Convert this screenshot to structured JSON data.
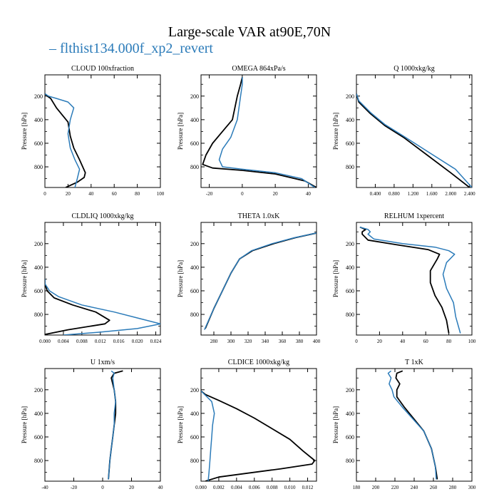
{
  "title": "Large-scale VAR at90E,70N",
  "legend": {
    "prefix": "– ",
    "label": "flthist134.000f_xp2_revert",
    "color": "#2b7bb9"
  },
  "colors": {
    "control": "#000000",
    "test": "#2b7bb9"
  },
  "chart_data": [
    {
      "type": "line",
      "title": "CLOUD  100xfraction",
      "ylabel": "Pressure [hPa]",
      "xlim": [
        0,
        100
      ],
      "ylim": [
        975,
        20
      ],
      "y_inverted": true,
      "xticks": [
        0,
        20,
        40,
        60,
        80,
        100
      ],
      "xticklabels": [
        "0",
        "20",
        "40",
        "60",
        "80",
        "100"
      ],
      "yticks": [
        200,
        400,
        600,
        800
      ],
      "series": [
        {
          "name": "",
          "color": "#000000",
          "x": [
            0,
            2,
            5,
            10,
            20,
            22,
            25,
            30,
            35,
            34,
            28,
            18
          ],
          "y": [
            180,
            200,
            220,
            300,
            420,
            540,
            640,
            740,
            850,
            890,
            930,
            975
          ]
        },
        {
          "name": "flthist134.000f_xp2_revert",
          "color": "#2b7bb9",
          "x": [
            0,
            3,
            10,
            20,
            25,
            22,
            20,
            22,
            26,
            30,
            28,
            26
          ],
          "y": [
            180,
            200,
            220,
            250,
            300,
            400,
            520,
            640,
            740,
            820,
            900,
            975
          ]
        }
      ]
    },
    {
      "type": "line",
      "title": "OMEGA  864xPa/s",
      "ylabel": "Pressure [hPa]",
      "xlim": [
        -25,
        45
      ],
      "ylim": [
        975,
        20
      ],
      "y_inverted": true,
      "xticks": [
        -20,
        0,
        20,
        40
      ],
      "xticklabels": [
        "-20",
        "0",
        "20",
        "40"
      ],
      "yticks": [
        200,
        400,
        600,
        800
      ],
      "series": [
        {
          "name": "",
          "color": "#000000",
          "x": [
            0,
            -1,
            -3,
            -6,
            -12,
            -18,
            -22,
            -24,
            -18,
            0,
            20,
            38,
            45
          ],
          "y": [
            40,
            100,
            200,
            400,
            500,
            600,
            700,
            780,
            810,
            830,
            860,
            920,
            975
          ]
        },
        {
          "name": "flthist134.000f_xp2_revert",
          "color": "#2b7bb9",
          "x": [
            0,
            0,
            -1,
            -3,
            -7,
            -12,
            -14,
            -12,
            0,
            20,
            36,
            44
          ],
          "y": [
            40,
            100,
            200,
            400,
            550,
            650,
            740,
            800,
            820,
            850,
            900,
            975
          ]
        }
      ]
    },
    {
      "type": "line",
      "title": "Q  1000xkg/kg",
      "ylabel": "Pressure [hPa]",
      "xlim": [
        0,
        2.45
      ],
      "ylim": [
        975,
        20
      ],
      "y_inverted": true,
      "xticks": [
        0.4,
        0.8,
        1.2,
        1.6,
        2.0,
        2.4
      ],
      "xticklabels": [
        "0.400",
        "0.800",
        "1.200",
        "1.600",
        "2.000",
        "2.400"
      ],
      "yticks": [
        200,
        400,
        600,
        800
      ],
      "series": [
        {
          "name": "",
          "color": "#000000",
          "x": [
            0,
            0.05,
            0.3,
            0.6,
            1.0,
            1.5,
            2.0,
            2.4
          ],
          "y": [
            180,
            250,
            350,
            450,
            550,
            700,
            850,
            975
          ]
        },
        {
          "name": "flthist134.000f_xp2_revert",
          "color": "#2b7bb9",
          "x": [
            0,
            0.05,
            0.3,
            0.6,
            1.0,
            1.55,
            2.1,
            2.45
          ],
          "y": [
            180,
            240,
            340,
            440,
            540,
            680,
            820,
            975
          ]
        }
      ]
    },
    {
      "type": "line",
      "title": "CLDLIQ  1000xkg/kg",
      "ylabel": "Pressure [hPa]",
      "xlim": [
        0,
        0.025
      ],
      "ylim": [
        975,
        20
      ],
      "y_inverted": true,
      "xticks": [
        0,
        0.004,
        0.008,
        0.012,
        0.016,
        0.02,
        0.024
      ],
      "xticklabels": [
        "0.000",
        "0.004",
        "0.008",
        "0.012",
        "0.016",
        "0.020",
        "0.024"
      ],
      "yticks": [
        200,
        400,
        600,
        800
      ],
      "series": [
        {
          "name": "",
          "color": "#000000",
          "x": [
            0,
            0,
            0.0005,
            0.002,
            0.006,
            0.011,
            0.014,
            0.013,
            0.005,
            0
          ],
          "y": [
            500,
            540,
            600,
            660,
            720,
            780,
            850,
            880,
            930,
            970
          ]
        },
        {
          "name": "flthist134.000f_xp2_revert",
          "color": "#2b7bb9",
          "x": [
            0,
            0,
            0.001,
            0.003,
            0.008,
            0.015,
            0.02,
            0.025,
            0.02,
            0.012,
            0.004
          ],
          "y": [
            500,
            540,
            600,
            650,
            720,
            780,
            830,
            880,
            920,
            950,
            975
          ]
        }
      ]
    },
    {
      "type": "line",
      "title": "THETA  1.0xK",
      "ylabel": "Pressure [hPa]",
      "xlim": [
        265,
        400
      ],
      "ylim": [
        975,
        20
      ],
      "y_inverted": true,
      "xticks": [
        280,
        300,
        320,
        340,
        360,
        380,
        400
      ],
      "xticklabels": [
        "280",
        "300",
        "320",
        "340",
        "360",
        "380",
        "400"
      ],
      "yticks": [
        200,
        400,
        600,
        800
      ],
      "series": [
        {
          "name": "",
          "color": "#000000",
          "x": [
            400,
            375,
            350,
            325,
            310,
            300,
            290,
            280,
            270
          ],
          "y": [
            110,
            150,
            200,
            260,
            330,
            450,
            600,
            750,
            920
          ]
        },
        {
          "name": "flthist134.000f_xp2_revert",
          "color": "#2b7bb9",
          "x": [
            400,
            374,
            348,
            324,
            310,
            300,
            290,
            280,
            269
          ],
          "y": [
            110,
            150,
            200,
            260,
            330,
            450,
            600,
            750,
            930
          ]
        }
      ]
    },
    {
      "type": "line",
      "title": "RELHUM  1xpercent",
      "ylabel": "Pressure [hPa]",
      "xlim": [
        0,
        100
      ],
      "ylim": [
        975,
        20
      ],
      "y_inverted": true,
      "xticks": [
        0,
        20,
        40,
        60,
        80,
        100
      ],
      "xticklabels": [
        "0",
        "20",
        "40",
        "60",
        "80",
        "100"
      ],
      "yticks": [
        200,
        400,
        600,
        800
      ],
      "series": [
        {
          "name": "",
          "color": "#000000",
          "x": [
            3,
            8,
            5,
            5,
            10,
            35,
            62,
            72,
            70,
            64,
            64,
            68,
            74,
            78,
            80
          ],
          "y": [
            60,
            80,
            100,
            120,
            170,
            210,
            250,
            290,
            330,
            430,
            530,
            640,
            740,
            850,
            960
          ]
        },
        {
          "name": "flthist134.000f_xp2_revert",
          "color": "#2b7bb9",
          "x": [
            3,
            10,
            12,
            10,
            15,
            40,
            68,
            80,
            85,
            78,
            75,
            78,
            84,
            86,
            90
          ],
          "y": [
            60,
            80,
            100,
            120,
            160,
            200,
            230,
            260,
            290,
            360,
            460,
            580,
            700,
            820,
            960
          ]
        }
      ]
    },
    {
      "type": "line",
      "title": "U  1xm/s",
      "ylabel": "Pressure [hPa]",
      "xlim": [
        -40,
        40
      ],
      "ylim": [
        975,
        20
      ],
      "y_inverted": true,
      "xticks": [
        -40,
        -20,
        0,
        20,
        40
      ],
      "xticklabels": [
        "-40",
        "-20",
        "0",
        "20",
        "40"
      ],
      "yticks": [
        200,
        400,
        600,
        800
      ],
      "series": [
        {
          "name": "",
          "color": "#000000",
          "x": [
            14,
            8,
            6,
            8,
            9,
            9,
            8,
            7,
            6,
            5,
            4
          ],
          "y": [
            40,
            60,
            100,
            200,
            300,
            400,
            500,
            600,
            700,
            800,
            960
          ]
        },
        {
          "name": "flthist134.000f_xp2_revert",
          "color": "#2b7bb9",
          "x": [
            6,
            8,
            7,
            8,
            9,
            8,
            8,
            7,
            6,
            5,
            4
          ],
          "y": [
            40,
            60,
            100,
            200,
            300,
            400,
            500,
            600,
            700,
            800,
            960
          ]
        }
      ]
    },
    {
      "type": "line",
      "title": "CLDICE  1000xkg/kg",
      "ylabel": "Pressure [hPa]",
      "xlim": [
        0,
        0.013
      ],
      "ylim": [
        975,
        20
      ],
      "y_inverted": true,
      "xticks": [
        0,
        0.002,
        0.004,
        0.006,
        0.008,
        0.01,
        0.012
      ],
      "xticklabels": [
        "0.000",
        "0.002",
        "0.004",
        "0.006",
        "0.008",
        "0.010",
        "0.012"
      ],
      "yticks": [
        200,
        400,
        600,
        800
      ],
      "series": [
        {
          "name": "",
          "color": "#000000",
          "x": [
            0,
            0.0005,
            0.002,
            0.004,
            0.006,
            0.008,
            0.01,
            0.0115,
            0.0128,
            0.0125,
            0.009,
            0.005,
            0.002,
            0.0005
          ],
          "y": [
            210,
            240,
            290,
            360,
            440,
            530,
            620,
            720,
            800,
            830,
            870,
            910,
            940,
            975
          ]
        },
        {
          "name": "flthist134.000f_xp2_revert",
          "color": "#2b7bb9",
          "x": [
            0,
            0.0004,
            0.0012,
            0.0015,
            0.0013,
            0.0012,
            0.0011,
            0.001,
            0.0009,
            0.0008
          ],
          "y": [
            210,
            240,
            300,
            400,
            500,
            600,
            700,
            800,
            900,
            975
          ]
        }
      ]
    },
    {
      "type": "line",
      "title": "T  1xK",
      "ylabel": "Pressure [hPa]",
      "xlim": [
        180,
        300
      ],
      "ylim": [
        975,
        20
      ],
      "y_inverted": true,
      "xticks": [
        180,
        200,
        220,
        240,
        260,
        280,
        300
      ],
      "xticklabels": [
        "180",
        "200",
        "220",
        "240",
        "260",
        "280",
        "300"
      ],
      "yticks": [
        200,
        400,
        600,
        800
      ],
      "series": [
        {
          "name": "",
          "color": "#000000",
          "x": [
            228,
            222,
            221,
            225,
            222,
            222,
            230,
            240,
            250,
            258,
            262,
            264
          ],
          "y": [
            40,
            60,
            100,
            150,
            200,
            260,
            350,
            450,
            550,
            700,
            850,
            960
          ]
        },
        {
          "name": "flthist134.000f_xp2_revert",
          "color": "#2b7bb9",
          "x": [
            216,
            213,
            216,
            214,
            217,
            219,
            228,
            239,
            250,
            258,
            262,
            263
          ],
          "y": [
            40,
            60,
            100,
            150,
            200,
            260,
            350,
            450,
            550,
            700,
            850,
            960
          ]
        }
      ]
    }
  ]
}
